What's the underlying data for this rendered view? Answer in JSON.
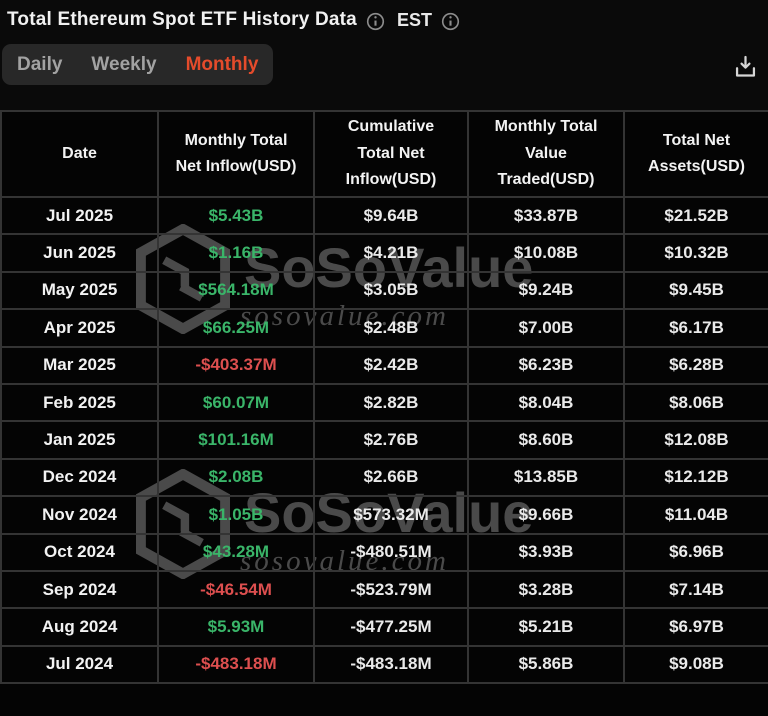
{
  "header": {
    "title": "Total Ethereum Spot ETF History Data",
    "timezone": "EST"
  },
  "tabs": [
    {
      "label": "Daily",
      "active": false
    },
    {
      "label": "Weekly",
      "active": false
    },
    {
      "label": "Monthly",
      "active": true
    }
  ],
  "toolbar": {
    "download_tooltip": "Download"
  },
  "icons": {
    "info": "info-circle",
    "download": "download-tray",
    "watermark_logo": "sosovalue-cube"
  },
  "table": {
    "columns": [
      "Date",
      "Monthly Total Net Inflow(USD)",
      "Cumulative Total Net Inflow(USD)",
      "Monthly Total Value Traded(USD)",
      "Total Net Assets(USD)"
    ],
    "rows": [
      {
        "date": "Jul 2025",
        "monthly_net_inflow": "$5.43B",
        "cumulative_net_inflow": "$9.64B",
        "value_traded": "$33.87B",
        "net_assets": "$21.52B"
      },
      {
        "date": "Jun 2025",
        "monthly_net_inflow": "$1.16B",
        "cumulative_net_inflow": "$4.21B",
        "value_traded": "$10.08B",
        "net_assets": "$10.32B"
      },
      {
        "date": "May 2025",
        "monthly_net_inflow": "$564.18M",
        "cumulative_net_inflow": "$3.05B",
        "value_traded": "$9.24B",
        "net_assets": "$9.45B"
      },
      {
        "date": "Apr 2025",
        "monthly_net_inflow": "$66.25M",
        "cumulative_net_inflow": "$2.48B",
        "value_traded": "$7.00B",
        "net_assets": "$6.17B"
      },
      {
        "date": "Mar 2025",
        "monthly_net_inflow": "-$403.37M",
        "cumulative_net_inflow": "$2.42B",
        "value_traded": "$6.23B",
        "net_assets": "$6.28B"
      },
      {
        "date": "Feb 2025",
        "monthly_net_inflow": "$60.07M",
        "cumulative_net_inflow": "$2.82B",
        "value_traded": "$8.04B",
        "net_assets": "$8.06B"
      },
      {
        "date": "Jan 2025",
        "monthly_net_inflow": "$101.16M",
        "cumulative_net_inflow": "$2.76B",
        "value_traded": "$8.60B",
        "net_assets": "$12.08B"
      },
      {
        "date": "Dec 2024",
        "monthly_net_inflow": "$2.08B",
        "cumulative_net_inflow": "$2.66B",
        "value_traded": "$13.85B",
        "net_assets": "$12.12B"
      },
      {
        "date": "Nov 2024",
        "monthly_net_inflow": "$1.05B",
        "cumulative_net_inflow": "$573.32M",
        "value_traded": "$9.66B",
        "net_assets": "$11.04B"
      },
      {
        "date": "Oct 2024",
        "monthly_net_inflow": "$43.28M",
        "cumulative_net_inflow": "-$480.51M",
        "value_traded": "$3.93B",
        "net_assets": "$6.96B"
      },
      {
        "date": "Sep 2024",
        "monthly_net_inflow": "-$46.54M",
        "cumulative_net_inflow": "-$523.79M",
        "value_traded": "$3.28B",
        "net_assets": "$7.14B"
      },
      {
        "date": "Aug 2024",
        "monthly_net_inflow": "$5.93M",
        "cumulative_net_inflow": "-$477.25M",
        "value_traded": "$5.21B",
        "net_assets": "$6.97B"
      },
      {
        "date": "Jul 2024",
        "monthly_net_inflow": "-$483.18M",
        "cumulative_net_inflow": "-$483.18M",
        "value_traded": "$5.86B",
        "net_assets": "$9.08B"
      }
    ]
  },
  "watermark": {
    "brand": "SoSoValue",
    "domain": "sosovalue.com"
  },
  "colors": {
    "positive": "#3ab569",
    "negative": "#dd4f4f",
    "tab_active": "#e54b2b"
  }
}
